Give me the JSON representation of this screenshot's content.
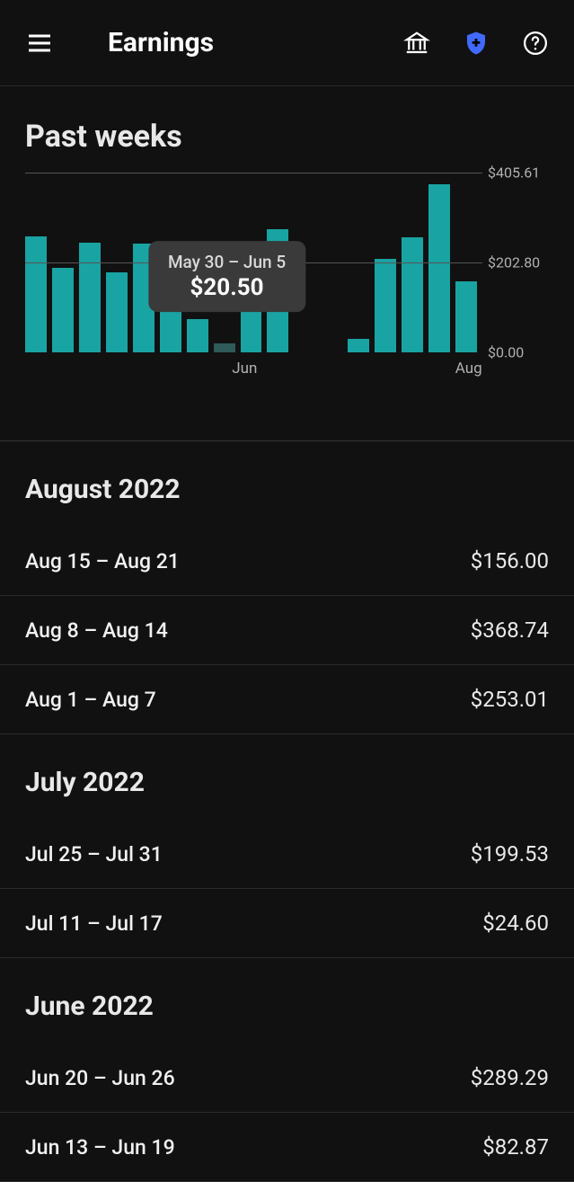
{
  "header": {
    "title": "Earnings",
    "icons": {
      "menu": "menu-icon",
      "bank": "bank-icon",
      "shield": "shield-plus-icon",
      "help": "help-icon"
    },
    "shield_color": "#4169ff"
  },
  "chart": {
    "type": "bar",
    "title": "Past weeks",
    "ylim": [
      0,
      405.61
    ],
    "y_ticks": [
      {
        "value": 405.61,
        "label": "$405.61"
      },
      {
        "value": 202.8,
        "label": "$202.80"
      },
      {
        "value": 0.0,
        "label": "$0.00"
      }
    ],
    "x_ticks": [
      {
        "position_pct": 48,
        "label": "Jun"
      },
      {
        "position_pct": 97,
        "label": "Aug"
      }
    ],
    "bar_color": "#1aa3a3",
    "bar_selected_color": "#2e5a5a",
    "grid_color": "#555555",
    "background_color": "#111111",
    "label_color": "#b0b0b0",
    "label_fontsize": 16,
    "bars": [
      {
        "value": 262
      },
      {
        "value": 190
      },
      {
        "value": 248
      },
      {
        "value": 180
      },
      {
        "value": 245
      },
      {
        "value": 250
      },
      {
        "value": 75
      },
      {
        "value": 20.5,
        "selected": true
      },
      {
        "value": 218
      },
      {
        "value": 278
      },
      {
        "value": 0
      },
      {
        "value": 0
      },
      {
        "value": 30
      },
      {
        "value": 210
      },
      {
        "value": 260
      },
      {
        "value": 380
      },
      {
        "value": 160
      }
    ],
    "tooltip": {
      "range": "May 30 – Jun 5",
      "value": "$20.50",
      "anchor_bar_index": 7,
      "bg_color": "#3a3a3a"
    }
  },
  "months": [
    {
      "label": "August 2022",
      "weeks": [
        {
          "range": "Aug 15 – Aug 21",
          "amount": "$156.00"
        },
        {
          "range": "Aug 8 – Aug 14",
          "amount": "$368.74"
        },
        {
          "range": "Aug 1 – Aug 7",
          "amount": "$253.01"
        }
      ]
    },
    {
      "label": "July 2022",
      "weeks": [
        {
          "range": "Jul 25 – Jul 31",
          "amount": "$199.53"
        },
        {
          "range": "Jul 11 – Jul 17",
          "amount": "$24.60"
        }
      ]
    },
    {
      "label": "June 2022",
      "weeks": [
        {
          "range": "Jun 20 – Jun 26",
          "amount": "$289.29"
        },
        {
          "range": "Jun 13 – Jun 19",
          "amount": "$82.87"
        }
      ]
    }
  ]
}
